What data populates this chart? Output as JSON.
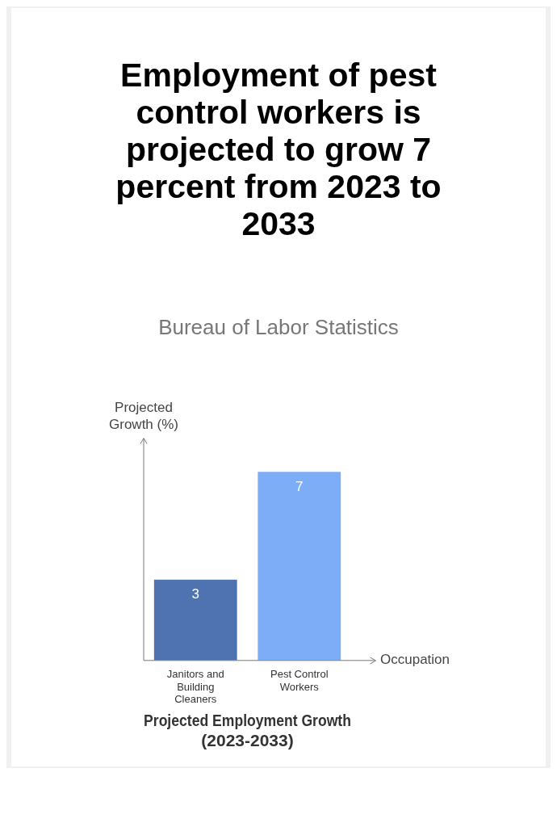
{
  "chart_data": {
    "type": "bar",
    "title": "Employment of pest control workers is projected to grow 7 percent from 2023 to 2033",
    "annotations": [
      "Bureau of Labor Statistics"
    ],
    "subtitle": "Projected Employment Growth (2023-2033)",
    "xlabel": "Occupation",
    "ylabel": "Projected Growth (%)",
    "categories": [
      "Janitors and Building Cleaners",
      "Pest Control Workers"
    ],
    "values": [
      3,
      7
    ],
    "colors": [
      "#4f73b0",
      "#7eadf7"
    ],
    "data_labels": true
  }
}
